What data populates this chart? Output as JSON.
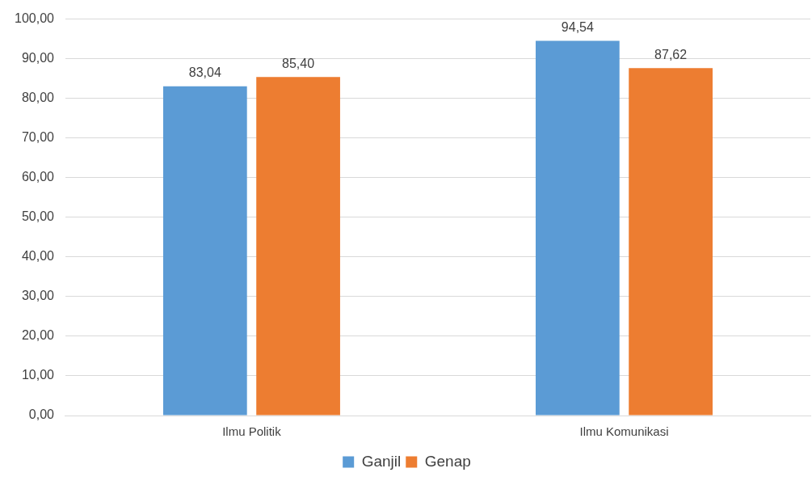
{
  "chart_data": {
    "type": "bar",
    "categories": [
      "Ilmu Politik",
      "Ilmu Komunikasi"
    ],
    "series": [
      {
        "name": "Ganjil",
        "color": "#5b9bd5",
        "values": [
          83.04,
          94.54
        ],
        "value_labels": [
          "83,04",
          "94,54"
        ]
      },
      {
        "name": "Genap",
        "color": "#ed7d31",
        "values": [
          85.4,
          87.62
        ],
        "value_labels": [
          "85,40",
          "87,62"
        ]
      }
    ],
    "ylim": [
      0,
      100
    ],
    "yticks": [
      {
        "value": 0,
        "label": "0,00"
      },
      {
        "value": 10,
        "label": "10,00"
      },
      {
        "value": 20,
        "label": "20,00"
      },
      {
        "value": 30,
        "label": "30,00"
      },
      {
        "value": 40,
        "label": "40,00"
      },
      {
        "value": 50,
        "label": "50,00"
      },
      {
        "value": 60,
        "label": "60,00"
      },
      {
        "value": 70,
        "label": "70,00"
      },
      {
        "value": 80,
        "label": "80,00"
      },
      {
        "value": 90,
        "label": "90,00"
      },
      {
        "value": 100,
        "label": "100,00"
      }
    ],
    "grid": "y",
    "legend": "bottom"
  }
}
